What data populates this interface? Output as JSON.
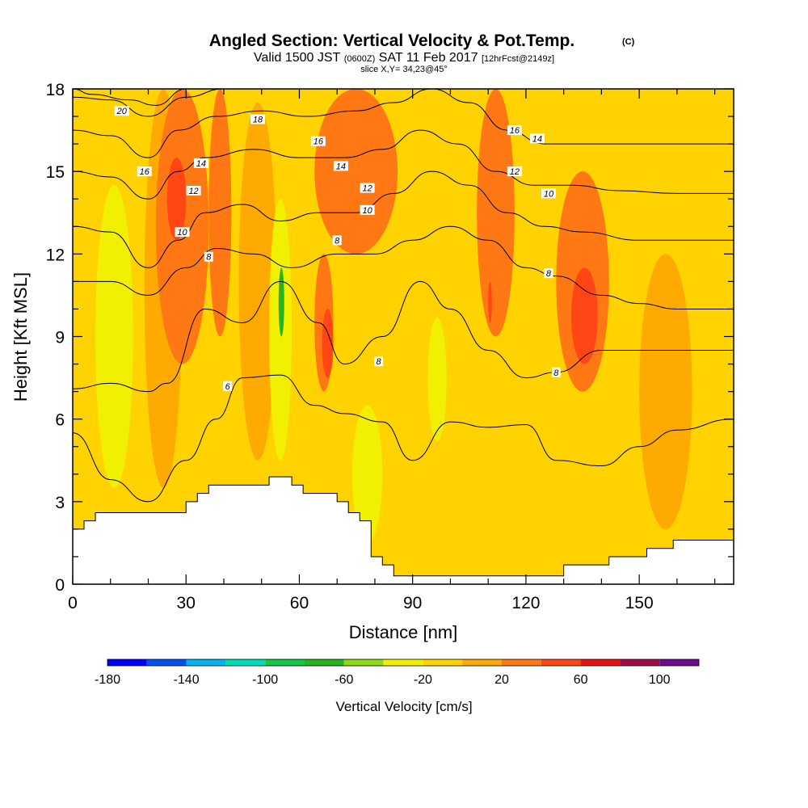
{
  "chart_data": {
    "type": "heatmap",
    "title": "Angled Section: Vertical Velocity & Pot.Temp.",
    "title_mark": "(C)",
    "subtitle_main": "Valid 1500 JST",
    "subtitle_zulu": "(0600Z)",
    "subtitle_date": "SAT 11 Feb 2017",
    "subtitle_fcst": "[12hrFcst@2149z]",
    "slice_text": "slice X,Y= 34,23@45°",
    "xlabel": "Distance [nm]",
    "ylabel": "Height [Kft MSL]",
    "xlim": [
      0,
      175
    ],
    "ylim": [
      0,
      18
    ],
    "x_ticks": [
      0,
      30,
      60,
      90,
      120,
      150
    ],
    "y_ticks": [
      0,
      3,
      6,
      9,
      12,
      15,
      18
    ],
    "colorbar": {
      "title": "Vertical Velocity [cm/s]",
      "min": -180,
      "max": 120,
      "step": 20,
      "tick_labels": [
        "-180",
        "-140",
        "-100",
        "-60",
        "-20",
        "20",
        "60",
        "100"
      ],
      "colors": [
        "#0000ff",
        "#0050f5",
        "#00b4f0",
        "#00dcb4",
        "#14c846",
        "#28b41e",
        "#8cdc14",
        "#f0f000",
        "#ffd200",
        "#ffaa00",
        "#ff7814",
        "#ff4614",
        "#e61414",
        "#a00a46",
        "#6e0a8c"
      ]
    },
    "grid": false,
    "terrain_kft": [
      [
        0,
        2.0
      ],
      [
        3,
        2.0
      ],
      [
        3,
        2.3
      ],
      [
        6,
        2.3
      ],
      [
        6,
        2.6
      ],
      [
        30,
        2.6
      ],
      [
        30,
        3.0
      ],
      [
        33,
        3.0
      ],
      [
        33,
        3.3
      ],
      [
        36,
        3.3
      ],
      [
        36,
        3.6
      ],
      [
        52,
        3.6
      ],
      [
        52,
        3.9
      ],
      [
        58,
        3.9
      ],
      [
        58,
        3.6
      ],
      [
        61,
        3.6
      ],
      [
        61,
        3.3
      ],
      [
        70,
        3.3
      ],
      [
        70,
        3.0
      ],
      [
        73,
        3.0
      ],
      [
        73,
        2.6
      ],
      [
        76,
        2.6
      ],
      [
        76,
        2.3
      ],
      [
        79,
        2.3
      ],
      [
        79,
        1.0
      ],
      [
        82,
        1.0
      ],
      [
        82,
        0.7
      ],
      [
        85,
        0.7
      ],
      [
        85,
        0.3
      ],
      [
        130,
        0.3
      ],
      [
        130,
        0.7
      ],
      [
        142,
        0.7
      ],
      [
        142,
        1.0
      ],
      [
        152,
        1.0
      ],
      [
        152,
        1.3
      ],
      [
        159,
        1.3
      ],
      [
        159,
        1.6
      ],
      [
        175,
        1.6
      ]
    ],
    "velocity_cells": [
      {
        "x": 6,
        "w": 10,
        "y": 3.5,
        "h": 11.0,
        "v": -40
      },
      {
        "x": 19,
        "w": 10,
        "y": 3.5,
        "h": 14.5,
        "v": 10
      },
      {
        "x": 22,
        "w": 14,
        "y": 8.0,
        "h": 10.0,
        "v": 25
      },
      {
        "x": 25,
        "w": 5,
        "y": 12.5,
        "h": 3.0,
        "v": 50
      },
      {
        "x": 36,
        "w": 6,
        "y": 9.0,
        "h": 9.0,
        "v": 35
      },
      {
        "x": 44,
        "w": 10,
        "y": 4.5,
        "h": 13.0,
        "v": 10
      },
      {
        "x": 52,
        "w": 6,
        "y": 4.5,
        "h": 9.5,
        "v": -40
      },
      {
        "x": 54.5,
        "w": 1.5,
        "y": 9.0,
        "h": 2.5,
        "v": -70
      },
      {
        "x": 59,
        "w": 11,
        "y": 6.5,
        "h": 6.0,
        "v": -10
      },
      {
        "x": 64,
        "w": 5,
        "y": 7.0,
        "h": 5.0,
        "v": 20
      },
      {
        "x": 66,
        "w": 3,
        "y": 7.5,
        "h": 2.5,
        "v": 45
      },
      {
        "x": 64,
        "w": 22,
        "y": 12.0,
        "h": 6.0,
        "v": 25
      },
      {
        "x": 74,
        "w": 8,
        "y": 1.5,
        "h": 5.0,
        "v": -35
      },
      {
        "x": 87,
        "w": 14,
        "y": 0.3,
        "h": 9.0,
        "v": -20
      },
      {
        "x": 94,
        "w": 5,
        "y": 5.2,
        "h": 4.5,
        "v": -40
      },
      {
        "x": 107,
        "w": 10,
        "y": 9.0,
        "h": 9.0,
        "v": 30
      },
      {
        "x": 110,
        "w": 1,
        "y": 9.5,
        "h": 1.5,
        "v": 55
      },
      {
        "x": 128,
        "w": 14,
        "y": 7.0,
        "h": 8.0,
        "v": 25
      },
      {
        "x": 132,
        "w": 7,
        "y": 8.0,
        "h": 3.5,
        "v": 50
      },
      {
        "x": 141,
        "w": 12,
        "y": 10.0,
        "h": 8.0,
        "v": -15
      },
      {
        "x": 150,
        "w": 14,
        "y": 2.0,
        "h": 10.0,
        "v": 10
      }
    ],
    "isentropes": [
      {
        "label": "6",
        "points": [
          [
            0,
            5.5
          ],
          [
            10,
            3.8
          ],
          [
            20,
            3.0
          ],
          [
            30,
            4.5
          ],
          [
            38,
            6.0
          ],
          [
            45,
            7.5
          ],
          [
            55,
            7.6
          ],
          [
            64,
            6.5
          ],
          [
            72,
            6.2
          ],
          [
            82,
            5.9
          ],
          [
            90,
            4.5
          ],
          [
            100,
            5.9
          ],
          [
            110,
            5.7
          ],
          [
            120,
            5.8
          ],
          [
            128,
            4.5
          ],
          [
            140,
            4.3
          ],
          [
            150,
            5.0
          ],
          [
            160,
            5.6
          ],
          [
            175,
            6.0
          ]
        ]
      },
      {
        "label": "8",
        "points": [
          [
            0,
            7.1
          ],
          [
            10,
            7.3
          ],
          [
            20,
            7.0
          ],
          [
            25,
            7.3
          ],
          [
            35,
            10.0
          ],
          [
            45,
            9.5
          ],
          [
            55,
            11.0
          ],
          [
            65,
            9.5
          ],
          [
            72,
            8.0
          ],
          [
            82,
            9.0
          ],
          [
            92,
            11.0
          ],
          [
            100,
            10.0
          ],
          [
            110,
            8.5
          ],
          [
            120,
            7.5
          ],
          [
            128,
            7.7
          ],
          [
            140,
            8.5
          ],
          [
            150,
            8.5
          ],
          [
            160,
            8.5
          ],
          [
            175,
            8.5
          ]
        ]
      },
      {
        "label": "10",
        "points": [
          [
            0,
            11.0
          ],
          [
            10,
            11.0
          ],
          [
            20,
            10.5
          ],
          [
            30,
            11.5
          ],
          [
            38,
            12.2
          ],
          [
            48,
            12.0
          ],
          [
            58,
            11.5
          ],
          [
            70,
            12.0
          ],
          [
            80,
            12.0
          ],
          [
            90,
            12.5
          ],
          [
            100,
            13.0
          ],
          [
            110,
            12.5
          ],
          [
            120,
            11.5
          ],
          [
            128,
            11.2
          ],
          [
            140,
            10.5
          ],
          [
            150,
            10.2
          ],
          [
            160,
            10.0
          ],
          [
            175,
            10.0
          ]
        ]
      },
      {
        "label": "12",
        "points": [
          [
            0,
            13.0
          ],
          [
            10,
            12.8
          ],
          [
            20,
            11.5
          ],
          [
            28,
            12.5
          ],
          [
            35,
            13.5
          ],
          [
            45,
            13.8
          ],
          [
            55,
            13.2
          ],
          [
            65,
            13.5
          ],
          [
            75,
            13.5
          ],
          [
            85,
            14.2
          ],
          [
            95,
            15.0
          ],
          [
            105,
            14.5
          ],
          [
            115,
            13.5
          ],
          [
            125,
            13.0
          ],
          [
            135,
            12.8
          ],
          [
            150,
            12.5
          ],
          [
            175,
            12.5
          ]
        ]
      },
      {
        "label": "14",
        "points": [
          [
            0,
            15.0
          ],
          [
            10,
            14.8
          ],
          [
            20,
            14.0
          ],
          [
            28,
            15.0
          ],
          [
            35,
            15.5
          ],
          [
            48,
            15.8
          ],
          [
            60,
            15.5
          ],
          [
            72,
            15.5
          ],
          [
            82,
            15.8
          ],
          [
            92,
            16.5
          ],
          [
            102,
            16.0
          ],
          [
            112,
            15.0
          ],
          [
            122,
            14.5
          ],
          [
            132,
            14.5
          ],
          [
            145,
            14.3
          ],
          [
            160,
            14.2
          ],
          [
            175,
            14.2
          ]
        ]
      },
      {
        "label": "16",
        "points": [
          [
            0,
            16.5
          ],
          [
            10,
            16.3
          ],
          [
            20,
            15.5
          ],
          [
            28,
            16.5
          ],
          [
            38,
            17.0
          ],
          [
            50,
            17.2
          ],
          [
            62,
            17.0
          ],
          [
            75,
            17.2
          ],
          [
            85,
            17.5
          ],
          [
            95,
            18.0
          ],
          [
            105,
            17.5
          ],
          [
            115,
            16.5
          ],
          [
            125,
            16.0
          ],
          [
            135,
            16.0
          ],
          [
            150,
            16.0
          ],
          [
            175,
            16.0
          ]
        ]
      },
      {
        "label": "18",
        "points": [
          [
            0,
            17.7
          ],
          [
            10,
            17.6
          ],
          [
            20,
            17.0
          ],
          [
            30,
            17.7
          ],
          [
            40,
            18.0
          ],
          [
            50,
            18.0
          ]
        ]
      },
      {
        "label": "20",
        "points": [
          [
            0,
            18.0
          ],
          [
            5,
            17.8
          ],
          [
            15,
            17.6
          ],
          [
            22,
            17.4
          ],
          [
            30,
            18.0
          ]
        ]
      }
    ],
    "contour_labels": [
      {
        "text": "20",
        "x": 13,
        "y": 17.2
      },
      {
        "text": "18",
        "x": 49,
        "y": 16.9
      },
      {
        "text": "16",
        "x": 19,
        "y": 15.0
      },
      {
        "text": "16",
        "x": 65,
        "y": 16.1
      },
      {
        "text": "16",
        "x": 117,
        "y": 16.5
      },
      {
        "text": "14",
        "x": 34,
        "y": 15.3
      },
      {
        "text": "14",
        "x": 71,
        "y": 15.2
      },
      {
        "text": "14",
        "x": 123,
        "y": 16.2
      },
      {
        "text": "12",
        "x": 32,
        "y": 14.3
      },
      {
        "text": "12",
        "x": 78,
        "y": 14.4
      },
      {
        "text": "12",
        "x": 117,
        "y": 15.0
      },
      {
        "text": "10",
        "x": 29,
        "y": 12.8
      },
      {
        "text": "10",
        "x": 78,
        "y": 13.6
      },
      {
        "text": "10",
        "x": 126,
        "y": 14.2
      },
      {
        "text": "8",
        "x": 36,
        "y": 11.9
      },
      {
        "text": "8",
        "x": 70,
        "y": 12.5
      },
      {
        "text": "8",
        "x": 126,
        "y": 11.3
      },
      {
        "text": "8",
        "x": 81,
        "y": 8.1
      },
      {
        "text": "8",
        "x": 128,
        "y": 7.7
      },
      {
        "text": "6",
        "x": 41,
        "y": 7.2
      }
    ]
  }
}
